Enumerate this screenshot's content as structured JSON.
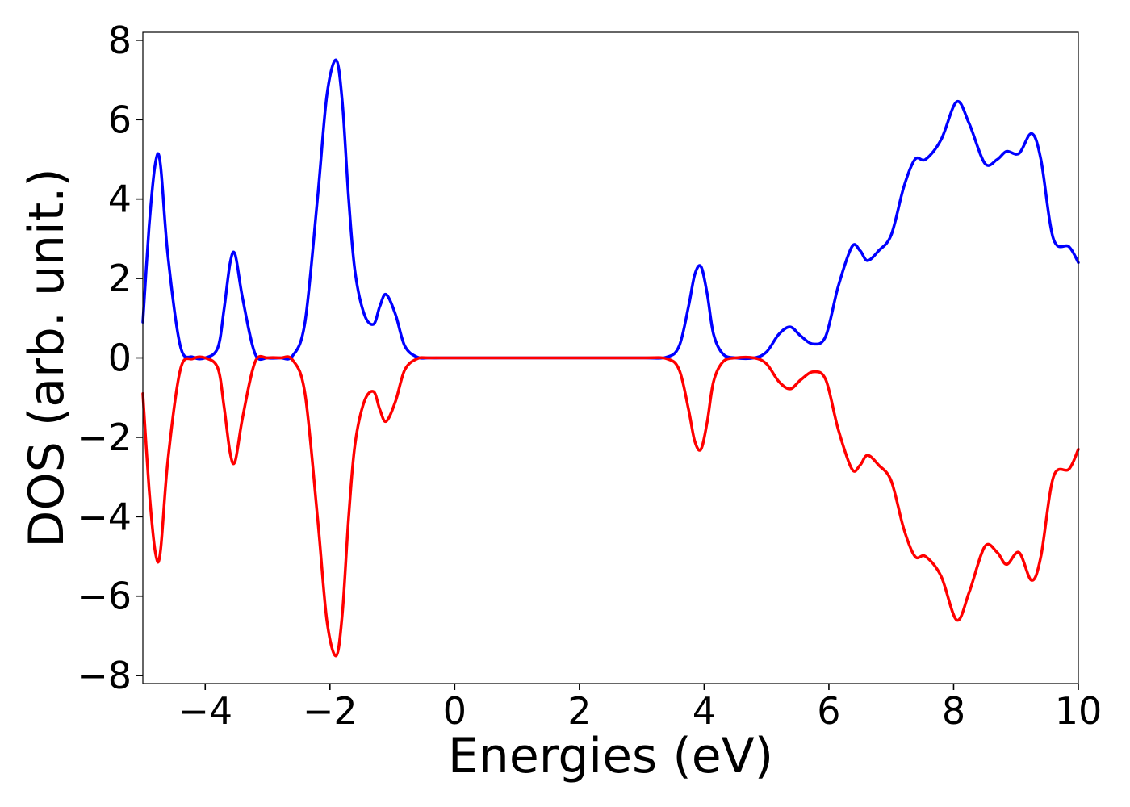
{
  "chart_data": {
    "type": "line",
    "title": "",
    "xlabel": "Energies (eV)",
    "ylabel": "DOS (arb. unit.)",
    "xlim": [
      -5,
      10
    ],
    "ylim": [
      -8.2,
      8.2
    ],
    "x_ticks": [
      -4,
      -2,
      0,
      2,
      4,
      6,
      8,
      10
    ],
    "x_tick_labels": [
      "−4",
      "−2",
      "0",
      "2",
      "4",
      "6",
      "8",
      "10"
    ],
    "y_ticks": [
      -8,
      -6,
      -4,
      -2,
      0,
      2,
      4,
      6,
      8
    ],
    "y_tick_labels": [
      "−8",
      "−6",
      "−4",
      "−2",
      "0",
      "2",
      "4",
      "6",
      "8"
    ],
    "grid": false,
    "legend": "none",
    "series": [
      {
        "color": "#0000ff",
        "x": [
          -5.0,
          -4.9,
          -4.8,
          -4.72,
          -4.6,
          -4.4,
          -4.2,
          -4.0,
          -3.8,
          -3.7,
          -3.6,
          -3.52,
          -3.4,
          -3.2,
          -3.0,
          -2.8,
          -2.6,
          -2.4,
          -2.2,
          -2.05,
          -1.9,
          -1.8,
          -1.7,
          -1.6,
          -1.45,
          -1.3,
          -1.2,
          -1.1,
          -0.95,
          -0.8,
          -0.6,
          -0.4,
          0.0,
          1.0,
          2.0,
          3.0,
          3.4,
          3.6,
          3.75,
          3.85,
          3.95,
          4.05,
          4.15,
          4.3,
          4.5,
          4.8,
          5.0,
          5.2,
          5.38,
          5.55,
          5.75,
          5.95,
          6.15,
          6.37,
          6.5,
          6.62,
          6.8,
          7.0,
          7.2,
          7.38,
          7.55,
          7.8,
          8.05,
          8.25,
          8.5,
          8.7,
          8.85,
          9.05,
          9.25,
          9.4,
          9.6,
          9.85,
          10.0
        ],
        "values": [
          0.9,
          3.3,
          4.9,
          4.9,
          2.6,
          0.3,
          0.02,
          0.0,
          0.25,
          1.2,
          2.4,
          2.6,
          1.5,
          0.1,
          0.0,
          0.0,
          0.05,
          0.9,
          4.0,
          6.6,
          7.5,
          6.4,
          4.0,
          2.2,
          1.1,
          0.85,
          1.3,
          1.6,
          1.1,
          0.3,
          0.02,
          0.0,
          0.0,
          0.0,
          0.0,
          0.0,
          0.02,
          0.3,
          1.3,
          2.1,
          2.3,
          1.6,
          0.6,
          0.1,
          0.0,
          0.0,
          0.15,
          0.6,
          0.78,
          0.55,
          0.35,
          0.55,
          1.8,
          2.8,
          2.7,
          2.45,
          2.7,
          3.1,
          4.3,
          5.0,
          5.0,
          5.5,
          6.45,
          5.9,
          4.9,
          5.0,
          5.2,
          5.15,
          5.65,
          5.0,
          3.0,
          2.8,
          2.4
        ]
      },
      {
        "color": "#ff0000",
        "x": [
          -5.0,
          -4.9,
          -4.8,
          -4.72,
          -4.6,
          -4.4,
          -4.2,
          -4.0,
          -3.8,
          -3.7,
          -3.6,
          -3.52,
          -3.4,
          -3.2,
          -3.0,
          -2.8,
          -2.6,
          -2.4,
          -2.2,
          -2.05,
          -1.9,
          -1.8,
          -1.7,
          -1.6,
          -1.45,
          -1.3,
          -1.2,
          -1.1,
          -0.95,
          -0.8,
          -0.6,
          -0.4,
          0.0,
          1.0,
          2.0,
          3.0,
          3.4,
          3.6,
          3.75,
          3.85,
          3.95,
          4.05,
          4.15,
          4.3,
          4.5,
          4.8,
          5.0,
          5.2,
          5.38,
          5.55,
          5.75,
          5.95,
          6.15,
          6.37,
          6.5,
          6.62,
          6.8,
          7.0,
          7.2,
          7.38,
          7.55,
          7.8,
          8.05,
          8.25,
          8.5,
          8.7,
          8.85,
          9.05,
          9.25,
          9.4,
          9.6,
          9.85,
          10.0
        ],
        "values": [
          -0.9,
          -3.3,
          -4.9,
          -4.9,
          -2.6,
          -0.3,
          -0.02,
          0.0,
          -0.25,
          -1.2,
          -2.4,
          -2.6,
          -1.5,
          -0.1,
          0.0,
          0.0,
          -0.05,
          -0.9,
          -4.0,
          -6.6,
          -7.5,
          -6.4,
          -4.0,
          -2.2,
          -1.1,
          -0.85,
          -1.3,
          -1.6,
          -1.1,
          -0.3,
          -0.02,
          0.0,
          0.0,
          0.0,
          0.0,
          0.0,
          -0.02,
          -0.3,
          -1.3,
          -2.1,
          -2.3,
          -1.6,
          -0.6,
          -0.1,
          0.0,
          0.0,
          -0.15,
          -0.6,
          -0.78,
          -0.55,
          -0.35,
          -0.55,
          -1.8,
          -2.8,
          -2.7,
          -2.45,
          -2.7,
          -3.1,
          -4.3,
          -5.0,
          -5.0,
          -5.5,
          -6.6,
          -5.9,
          -4.75,
          -4.9,
          -5.2,
          -4.9,
          -5.6,
          -5.0,
          -3.0,
          -2.8,
          -2.3
        ]
      }
    ]
  }
}
